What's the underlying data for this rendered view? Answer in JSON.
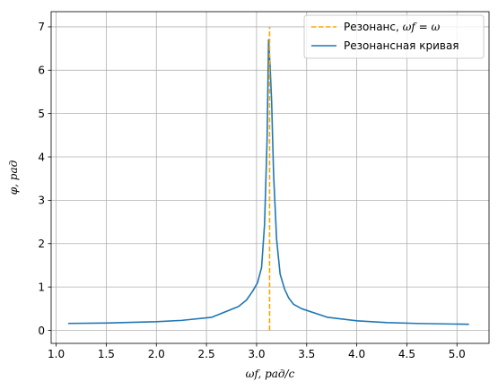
{
  "chart_data": {
    "type": "line",
    "xlabel": "ωf, рад/с",
    "ylabel": "φ, рад",
    "xlim": [
      0.95,
      5.32
    ],
    "ylim": [
      -0.3,
      7.35
    ],
    "x_ticks": [
      1.0,
      1.5,
      2.0,
      2.5,
      3.0,
      3.5,
      4.0,
      4.5,
      5.0
    ],
    "y_ticks": [
      0,
      1,
      2,
      3,
      4,
      5,
      6,
      7
    ],
    "grid": true,
    "legend_position": "top-right",
    "colors": {
      "curve": "#1f77b4",
      "resonance": "#ffa500",
      "grid": "#b0b0b0"
    },
    "series": [
      {
        "name": "Резонансная кривая",
        "style": "solid",
        "x": [
          1.12,
          1.5,
          2.0,
          2.25,
          2.55,
          2.82,
          2.9,
          2.96,
          3.01,
          3.05,
          3.08,
          3.105,
          3.12,
          3.135,
          3.15,
          3.17,
          3.2,
          3.235,
          3.28,
          3.32,
          3.37,
          3.45,
          3.71,
          4.0,
          4.3,
          4.6,
          5.12
        ],
        "y": [
          0.16,
          0.17,
          0.2,
          0.23,
          0.3,
          0.55,
          0.7,
          0.9,
          1.1,
          1.45,
          2.45,
          4.4,
          6.7,
          6.1,
          5.3,
          3.6,
          2.1,
          1.3,
          0.95,
          0.75,
          0.6,
          0.5,
          0.3,
          0.22,
          0.18,
          0.16,
          0.14
        ]
      },
      {
        "name": "Резонанс, ωf = ω",
        "style": "dashed",
        "x": [
          3.13,
          3.13
        ],
        "y": [
          0.0,
          7.0
        ]
      }
    ],
    "legend": {
      "resonance_label_prefix": "Резонанс, ",
      "resonance_label_math": "ωf = ω",
      "curve_label": "Резонансная кривая"
    }
  }
}
